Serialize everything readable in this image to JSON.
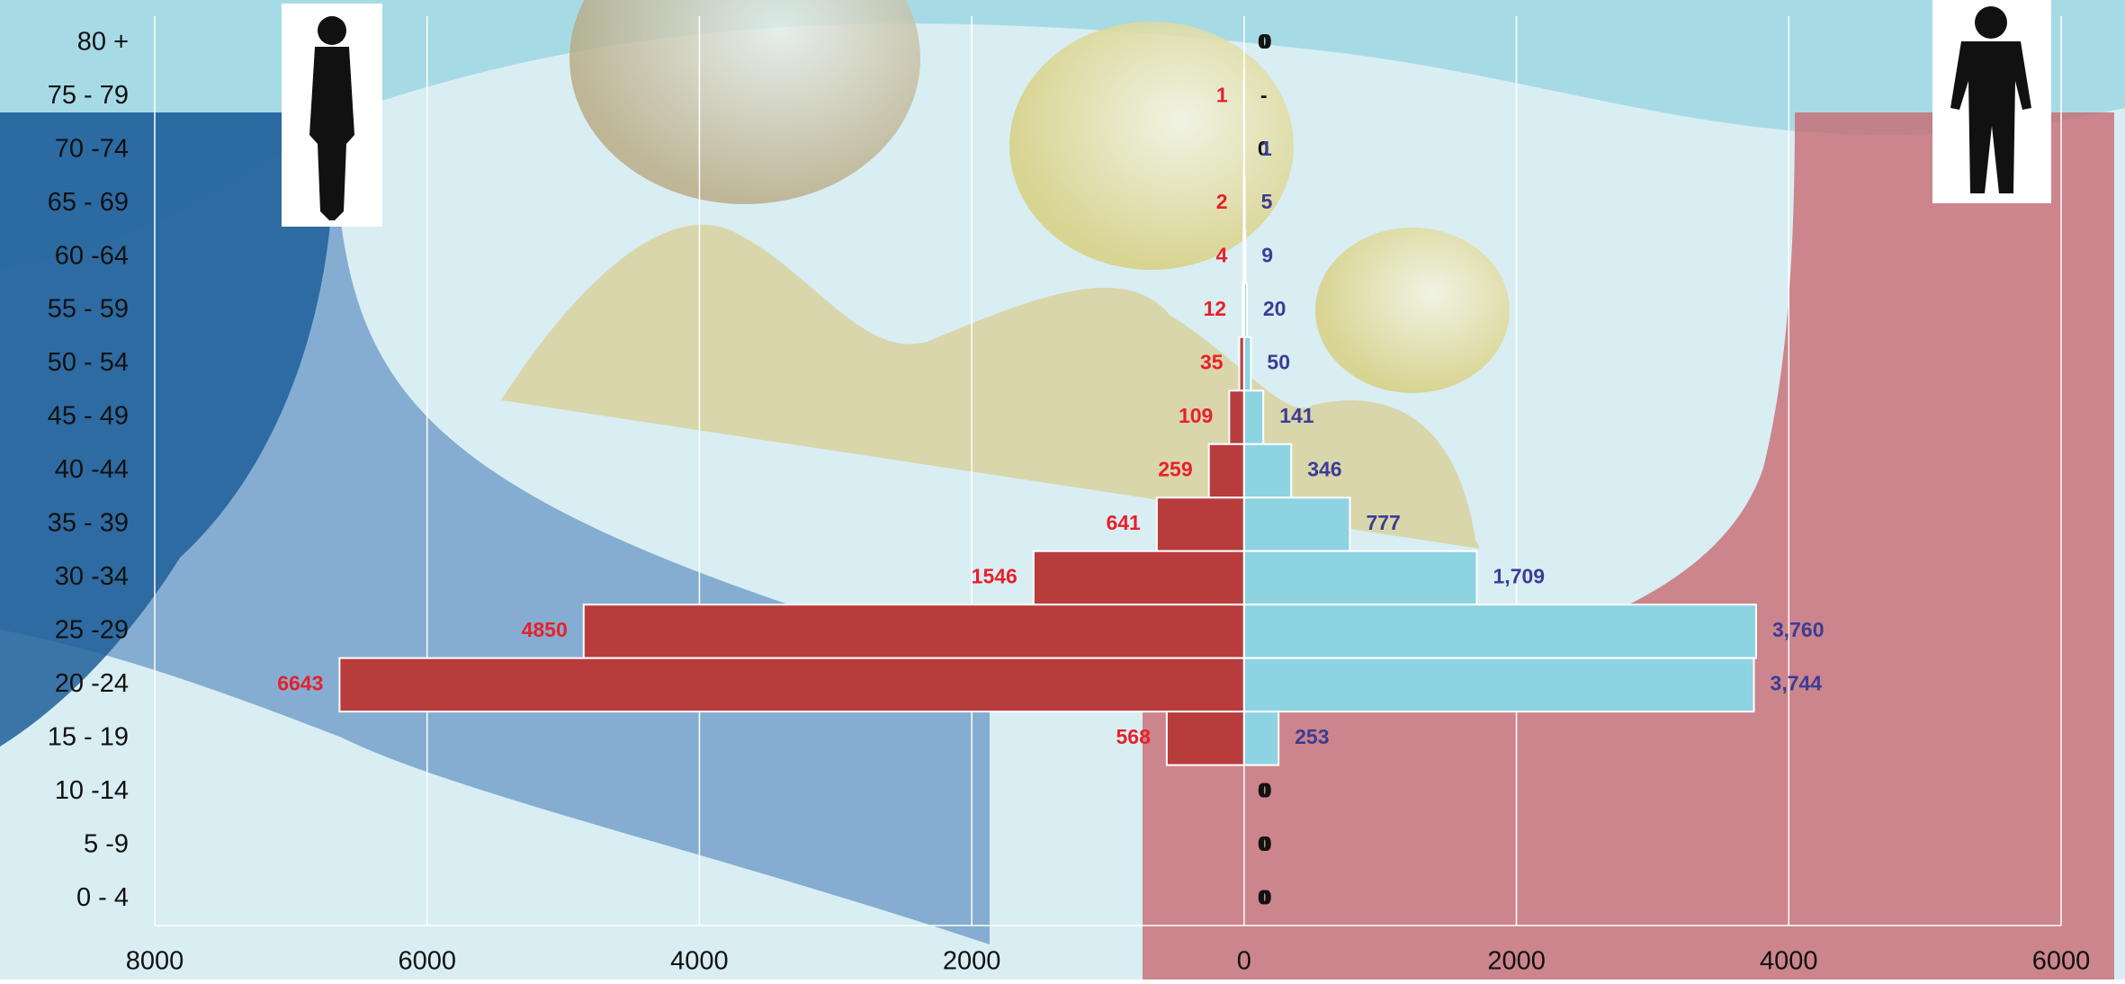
{
  "chart_data": {
    "type": "pyramid",
    "categories": [
      "80 +",
      "75 - 79",
      "70 -74",
      "65 - 69",
      "60 -64",
      "55 - 59",
      "50 - 54",
      "45 - 49",
      "40 -44",
      "35 - 39",
      "30 -34",
      "25 -29",
      "20 -24",
      "15 - 19",
      "10 -14",
      "5 -9",
      "0 - 4"
    ],
    "series": [
      {
        "side": "left",
        "color": "#b83c3c",
        "label_color": "#e8202a",
        "values": [
          0,
          1,
          0,
          2,
          4,
          12,
          35,
          109,
          259,
          641,
          1546,
          4850,
          6643,
          568,
          0,
          0,
          0
        ]
      },
      {
        "side": "right",
        "color": "#8dd3e2",
        "label_color": "#3c3c96",
        "values": [
          0,
          0,
          1,
          5,
          9,
          20,
          50,
          141,
          346,
          777,
          1709,
          3760,
          3744,
          253,
          0,
          0,
          0
        ],
        "value_labels": [
          "0",
          "-",
          "1",
          "5",
          "9",
          "20",
          "50",
          "141",
          "346",
          "777",
          "1,709",
          "3,760",
          "3,744",
          "253",
          "0",
          "0",
          "0"
        ]
      }
    ],
    "xlim": [
      -8000,
      6000
    ],
    "xticks": [
      {
        "value": -8000,
        "label": "8000"
      },
      {
        "value": -6000,
        "label": "6000"
      },
      {
        "value": -4000,
        "label": "4000"
      },
      {
        "value": -2000,
        "label": "2000"
      },
      0,
      2000,
      4000,
      6000
    ],
    "grid": true
  }
}
